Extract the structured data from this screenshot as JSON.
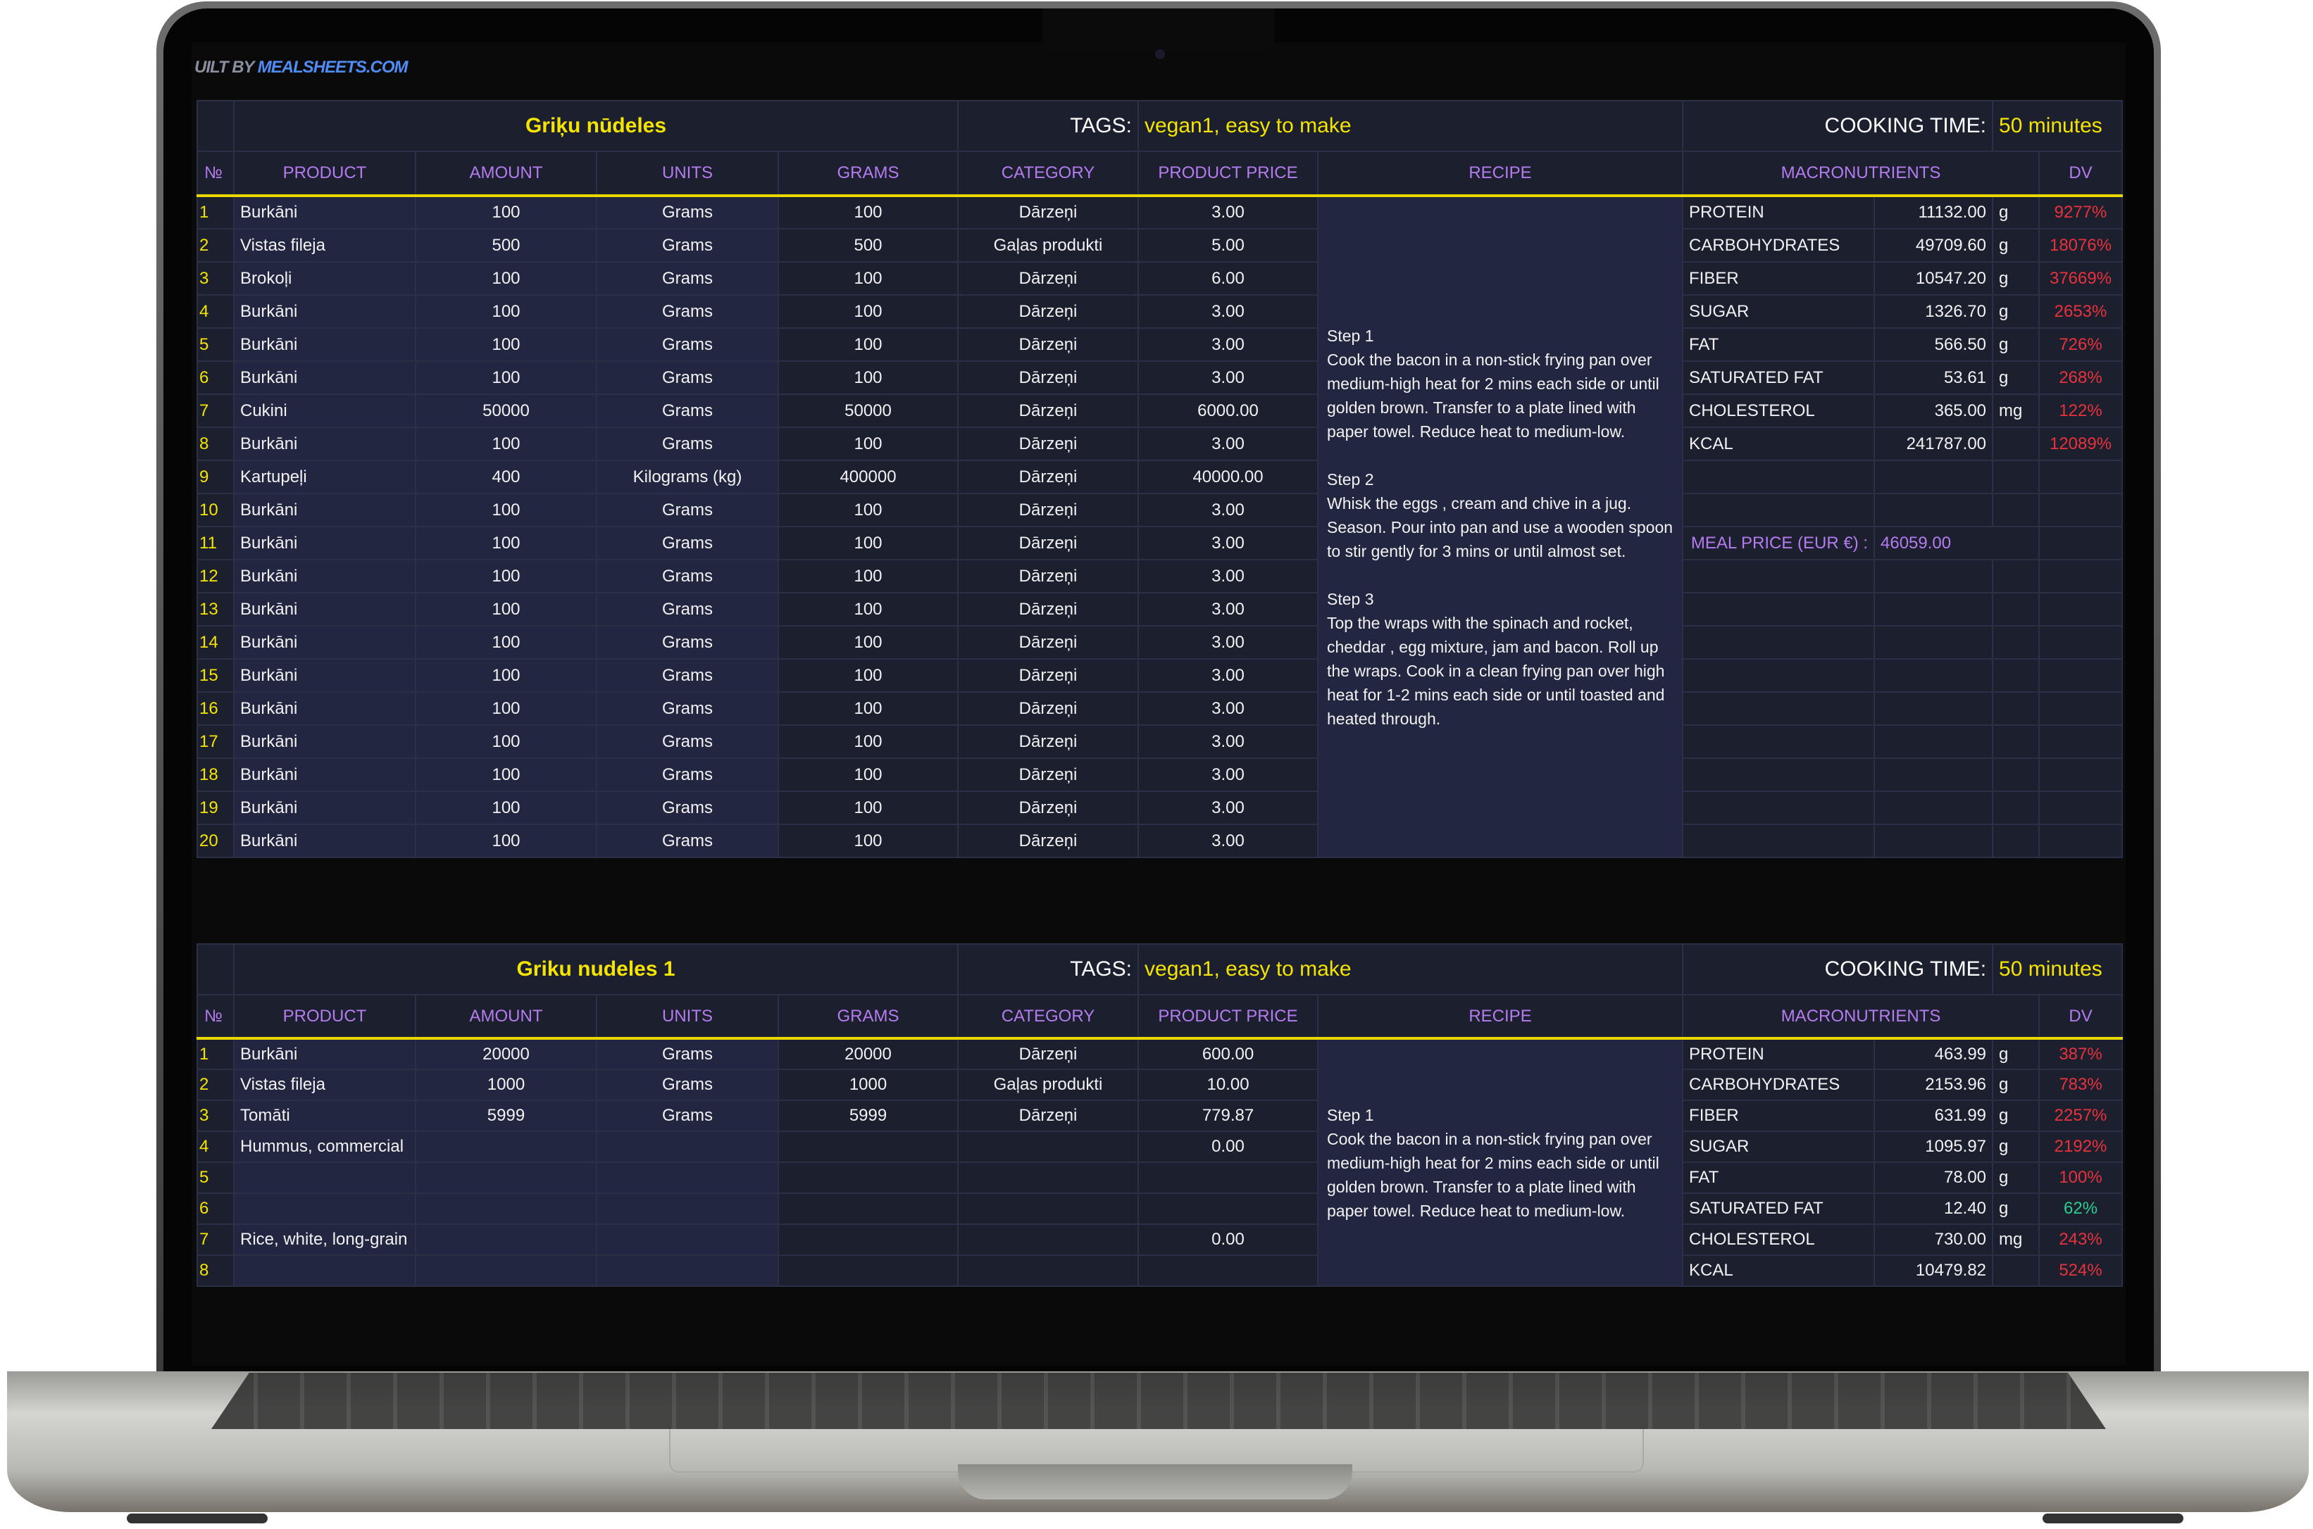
{
  "brand": {
    "prefix": "UILT BY",
    "site": "MEALSHEETS.COM"
  },
  "colors": {
    "accent_yellow": "#f5e400",
    "header_purple": "#b57cf0",
    "dv_over": "#e8323c",
    "dv_ok": "#2ecc8f",
    "background": "#1b1f2e"
  },
  "headers": {
    "no": "№",
    "product": "PRODUCT",
    "amount": "AMOUNT",
    "units": "UNITS",
    "grams": "GRAMS",
    "category": "CATEGORY",
    "price": "PRODUCT PRICE",
    "recipe": "RECIPE",
    "macros": "MACRONUTRIENTS",
    "dv": "DV"
  },
  "labels": {
    "tags": "TAGS:",
    "cooking_time": "COOKING TIME:",
    "meal_price": "MEAL PRICE (EUR €) :"
  },
  "meals": [
    {
      "title": "Griķu nūdeles",
      "tags": "vegan1, easy to make",
      "cooking_time": "50 minutes",
      "meal_price": "46059.00",
      "recipe": "Step 1\nCook the bacon in a non-stick frying pan over medium-high heat for 2 mins each side or until golden brown. Transfer to a plate lined with paper towel. Reduce heat to medium-low.\n\nStep 2\nWhisk the eggs , cream and chive in a jug. Season. Pour into pan and use a wooden spoon to stir gently for 3 mins or until almost set.\n\nStep 3\nTop the wraps with the spinach and rocket, cheddar , egg mixture, jam and bacon. Roll up the wraps. Cook in a clean frying pan over high heat for 1-2 mins each side or until toasted and heated through.",
      "rows": [
        {
          "no": "1",
          "product": "Burkāni",
          "amount": "100",
          "units": "Grams",
          "grams": "100",
          "category": "Dārzeņi",
          "price": "3.00"
        },
        {
          "no": "2",
          "product": "Vistas fileja",
          "amount": "500",
          "units": "Grams",
          "grams": "500",
          "category": "Gaļas produkti",
          "price": "5.00"
        },
        {
          "no": "3",
          "product": "Brokoļi",
          "amount": "100",
          "units": "Grams",
          "grams": "100",
          "category": "Dārzeņi",
          "price": "6.00"
        },
        {
          "no": "4",
          "product": "Burkāni",
          "amount": "100",
          "units": "Grams",
          "grams": "100",
          "category": "Dārzeņi",
          "price": "3.00"
        },
        {
          "no": "5",
          "product": "Burkāni",
          "amount": "100",
          "units": "Grams",
          "grams": "100",
          "category": "Dārzeņi",
          "price": "3.00"
        },
        {
          "no": "6",
          "product": "Burkāni",
          "amount": "100",
          "units": "Grams",
          "grams": "100",
          "category": "Dārzeņi",
          "price": "3.00"
        },
        {
          "no": "7",
          "product": "Cukini",
          "amount": "50000",
          "units": "Grams",
          "grams": "50000",
          "category": "Dārzeņi",
          "price": "6000.00"
        },
        {
          "no": "8",
          "product": "Burkāni",
          "amount": "100",
          "units": "Grams",
          "grams": "100",
          "category": "Dārzeņi",
          "price": "3.00"
        },
        {
          "no": "9",
          "product": "Kartupeļi",
          "amount": "400",
          "units": "Kilograms (kg)",
          "grams": "400000",
          "category": "Dārzeņi",
          "price": "40000.00"
        },
        {
          "no": "10",
          "product": "Burkāni",
          "amount": "100",
          "units": "Grams",
          "grams": "100",
          "category": "Dārzeņi",
          "price": "3.00"
        },
        {
          "no": "11",
          "product": "Burkāni",
          "amount": "100",
          "units": "Grams",
          "grams": "100",
          "category": "Dārzeņi",
          "price": "3.00"
        },
        {
          "no": "12",
          "product": "Burkāni",
          "amount": "100",
          "units": "Grams",
          "grams": "100",
          "category": "Dārzeņi",
          "price": "3.00"
        },
        {
          "no": "13",
          "product": "Burkāni",
          "amount": "100",
          "units": "Grams",
          "grams": "100",
          "category": "Dārzeņi",
          "price": "3.00"
        },
        {
          "no": "14",
          "product": "Burkāni",
          "amount": "100",
          "units": "Grams",
          "grams": "100",
          "category": "Dārzeņi",
          "price": "3.00"
        },
        {
          "no": "15",
          "product": "Burkāni",
          "amount": "100",
          "units": "Grams",
          "grams": "100",
          "category": "Dārzeņi",
          "price": "3.00"
        },
        {
          "no": "16",
          "product": "Burkāni",
          "amount": "100",
          "units": "Grams",
          "grams": "100",
          "category": "Dārzeņi",
          "price": "3.00"
        },
        {
          "no": "17",
          "product": "Burkāni",
          "amount": "100",
          "units": "Grams",
          "grams": "100",
          "category": "Dārzeņi",
          "price": "3.00"
        },
        {
          "no": "18",
          "product": "Burkāni",
          "amount": "100",
          "units": "Grams",
          "grams": "100",
          "category": "Dārzeņi",
          "price": "3.00"
        },
        {
          "no": "19",
          "product": "Burkāni",
          "amount": "100",
          "units": "Grams",
          "grams": "100",
          "category": "Dārzeņi",
          "price": "3.00"
        },
        {
          "no": "20",
          "product": "Burkāni",
          "amount": "100",
          "units": "Grams",
          "grams": "100",
          "category": "Dārzeņi",
          "price": "3.00"
        }
      ],
      "macros": [
        {
          "name": "PROTEIN",
          "value": "11132.00",
          "unit": "g",
          "dv": "9277%",
          "dv_color": "#e8323c"
        },
        {
          "name": "CARBOHYDRATES",
          "value": "49709.60",
          "unit": "g",
          "dv": "18076%",
          "dv_color": "#e8323c"
        },
        {
          "name": "FIBER",
          "value": "10547.20",
          "unit": "g",
          "dv": "37669%",
          "dv_color": "#e8323c"
        },
        {
          "name": "SUGAR",
          "value": "1326.70",
          "unit": "g",
          "dv": "2653%",
          "dv_color": "#e8323c"
        },
        {
          "name": "FAT",
          "value": "566.50",
          "unit": "g",
          "dv": "726%",
          "dv_color": "#e8323c"
        },
        {
          "name": "SATURATED FAT",
          "value": "53.61",
          "unit": "g",
          "dv": "268%",
          "dv_color": "#e8323c"
        },
        {
          "name": "CHOLESTEROL",
          "value": "365.00",
          "unit": "mg",
          "dv": "122%",
          "dv_color": "#e8323c"
        },
        {
          "name": "KCAL",
          "value": "241787.00",
          "unit": "",
          "dv": "12089%",
          "dv_color": "#e8323c"
        }
      ]
    },
    {
      "title": "Griku nudeles 1",
      "tags": "vegan1, easy to make",
      "cooking_time": "50 minutes",
      "recipe": "Step 1\nCook the bacon in a non-stick frying pan over medium-high heat for 2 mins each side or until golden brown. Transfer to a plate lined with paper towel. Reduce heat to medium-low.",
      "rows": [
        {
          "no": "1",
          "product": "Burkāni",
          "amount": "20000",
          "units": "Grams",
          "grams": "20000",
          "category": "Dārzeņi",
          "price": "600.00"
        },
        {
          "no": "2",
          "product": "Vistas fileja",
          "amount": "1000",
          "units": "Grams",
          "grams": "1000",
          "category": "Gaļas produkti",
          "price": "10.00"
        },
        {
          "no": "3",
          "product": "Tomāti",
          "amount": "5999",
          "units": "Grams",
          "grams": "5999",
          "category": "Dārzeņi",
          "price": "779.87"
        },
        {
          "no": "4",
          "product": "Hummus, commercial",
          "amount": "",
          "units": "",
          "grams": "",
          "category": "",
          "price": "0.00"
        },
        {
          "no": "5",
          "product": "",
          "amount": "",
          "units": "",
          "grams": "",
          "category": "",
          "price": ""
        },
        {
          "no": "6",
          "product": "",
          "amount": "",
          "units": "",
          "grams": "",
          "category": "",
          "price": ""
        },
        {
          "no": "7",
          "product": "Rice, white, long-grain",
          "amount": "",
          "units": "",
          "grams": "",
          "category": "",
          "price": "0.00"
        },
        {
          "no": "8",
          "product": "",
          "amount": "",
          "units": "",
          "grams": "",
          "category": "",
          "price": ""
        }
      ],
      "macros": [
        {
          "name": "PROTEIN",
          "value": "463.99",
          "unit": "g",
          "dv": "387%",
          "dv_color": "#e8323c"
        },
        {
          "name": "CARBOHYDRATES",
          "value": "2153.96",
          "unit": "g",
          "dv": "783%",
          "dv_color": "#e8323c"
        },
        {
          "name": "FIBER",
          "value": "631.99",
          "unit": "g",
          "dv": "2257%",
          "dv_color": "#e8323c"
        },
        {
          "name": "SUGAR",
          "value": "1095.97",
          "unit": "g",
          "dv": "2192%",
          "dv_color": "#e8323c"
        },
        {
          "name": "FAT",
          "value": "78.00",
          "unit": "g",
          "dv": "100%",
          "dv_color": "#e8323c"
        },
        {
          "name": "SATURATED FAT",
          "value": "12.40",
          "unit": "g",
          "dv": "62%",
          "dv_color": "#2ecc8f"
        },
        {
          "name": "CHOLESTEROL",
          "value": "730.00",
          "unit": "mg",
          "dv": "243%",
          "dv_color": "#e8323c"
        },
        {
          "name": "KCAL",
          "value": "10479.82",
          "unit": "",
          "dv": "524%",
          "dv_color": "#e8323c"
        }
      ]
    }
  ]
}
